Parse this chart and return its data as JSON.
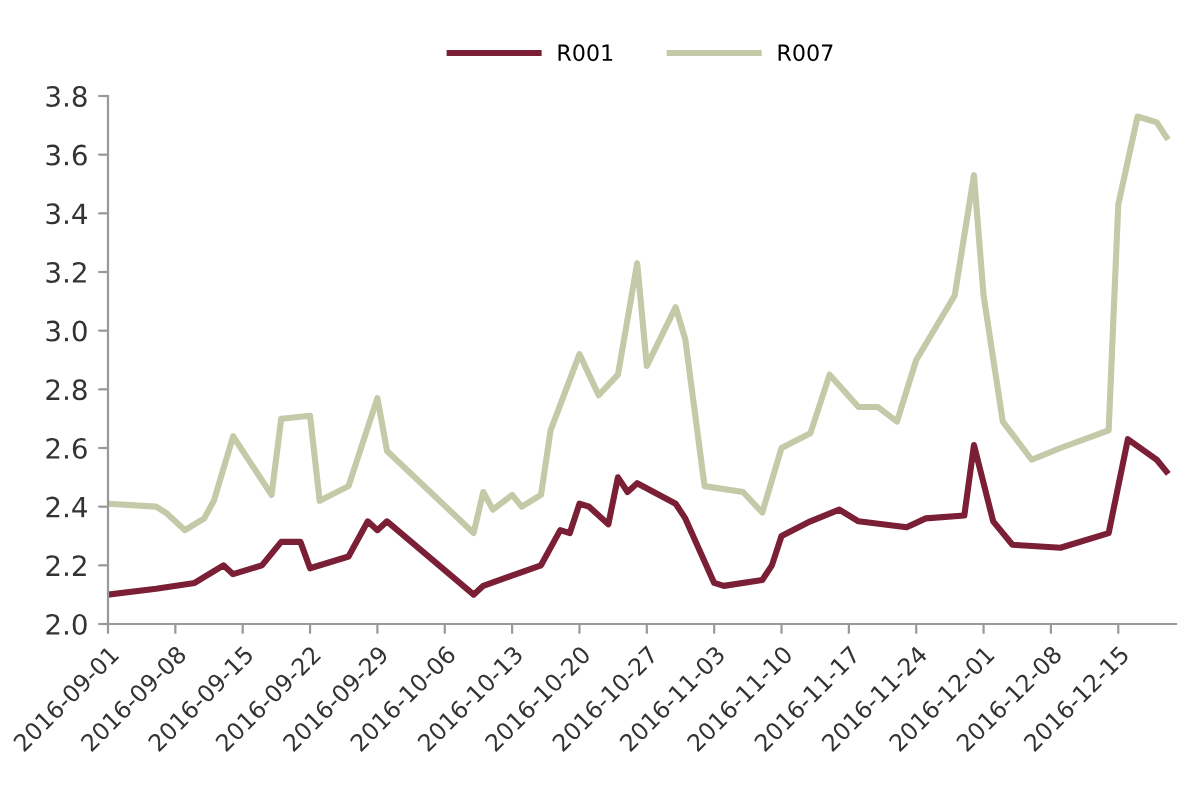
{
  "chart_data": {
    "type": "line",
    "legend": "top",
    "grid": false,
    "marker": "none",
    "line_style": "solid",
    "xlim": [
      "2016-09-01",
      "2016-12-21"
    ],
    "xticks": [
      "2016-09-01",
      "2016-09-08",
      "2016-09-15",
      "2016-09-22",
      "2016-09-29",
      "2016-10-06",
      "2016-10-13",
      "2016-10-20",
      "2016-10-27",
      "2016-11-03",
      "2016-11-10",
      "2016-11-17",
      "2016-11-24",
      "2016-12-01",
      "2016-12-08",
      "2016-12-15"
    ],
    "ylim": [
      2.0,
      3.8
    ],
    "yticks": [
      {
        "value": 2,
        "label": "2.0"
      },
      2.2,
      2.4,
      2.6,
      2.8,
      {
        "value": 3,
        "label": "3.0"
      },
      3.2,
      3.4,
      3.6,
      3.8
    ],
    "series": [
      {
        "name": "R001",
        "color": "#7a1f35",
        "x": [
          "2016-09-01",
          "2016-09-06",
          "2016-09-10",
          "2016-09-13",
          "2016-09-14",
          "2016-09-17",
          "2016-09-19",
          "2016-09-21",
          "2016-09-22",
          "2016-09-26",
          "2016-09-28",
          "2016-09-29",
          "2016-09-30",
          "2016-10-09",
          "2016-10-10",
          "2016-10-16",
          "2016-10-18",
          "2016-10-19",
          "2016-10-20",
          "2016-10-21",
          "2016-10-23",
          "2016-10-24",
          "2016-10-25",
          "2016-10-26",
          "2016-10-30",
          "2016-10-31",
          "2016-11-03",
          "2016-11-04",
          "2016-11-08",
          "2016-11-09",
          "2016-11-10",
          "2016-11-13",
          "2016-11-16",
          "2016-11-18",
          "2016-11-23",
          "2016-11-25",
          "2016-11-29",
          "2016-11-30",
          "2016-12-02",
          "2016-12-04",
          "2016-12-09",
          "2016-12-14",
          "2016-12-16",
          "2016-12-19",
          "2016-12-20"
        ],
        "values": [
          2.1,
          2.12,
          2.14,
          2.2,
          2.17,
          2.2,
          2.28,
          2.28,
          2.19,
          2.23,
          2.35,
          2.32,
          2.35,
          2.1,
          2.13,
          2.2,
          2.32,
          2.31,
          2.41,
          2.4,
          2.34,
          2.5,
          2.45,
          2.48,
          2.41,
          2.36,
          2.14,
          2.13,
          2.15,
          2.2,
          2.3,
          2.35,
          2.39,
          2.35,
          2.33,
          2.36,
          2.37,
          2.61,
          2.35,
          2.27,
          2.26,
          2.31,
          2.63,
          2.56,
          2.52
        ]
      },
      {
        "name": "R007",
        "color": "#c5c9a8",
        "x": [
          "2016-09-01",
          "2016-09-06",
          "2016-09-07",
          "2016-09-09",
          "2016-09-11",
          "2016-09-12",
          "2016-09-14",
          "2016-09-18",
          "2016-09-19",
          "2016-09-22",
          "2016-09-23",
          "2016-09-26",
          "2016-09-29",
          "2016-09-30",
          "2016-10-09",
          "2016-10-10",
          "2016-10-11",
          "2016-10-13",
          "2016-10-14",
          "2016-10-16",
          "2016-10-17",
          "2016-10-20",
          "2016-10-22",
          "2016-10-24",
          "2016-10-26",
          "2016-10-27",
          "2016-10-30",
          "2016-10-31",
          "2016-11-02",
          "2016-11-06",
          "2016-11-08",
          "2016-11-10",
          "2016-11-13",
          "2016-11-15",
          "2016-11-18",
          "2016-11-20",
          "2016-11-22",
          "2016-11-24",
          "2016-11-28",
          "2016-11-30",
          "2016-12-01",
          "2016-12-03",
          "2016-12-06",
          "2016-12-09",
          "2016-12-14",
          "2016-12-15",
          "2016-12-17",
          "2016-12-19",
          "2016-12-20"
        ],
        "values": [
          2.41,
          2.4,
          2.38,
          2.32,
          2.36,
          2.42,
          2.64,
          2.44,
          2.7,
          2.71,
          2.42,
          2.47,
          2.77,
          2.59,
          2.31,
          2.45,
          2.39,
          2.44,
          2.4,
          2.44,
          2.66,
          2.92,
          2.78,
          2.85,
          3.23,
          2.88,
          3.08,
          2.97,
          2.47,
          2.45,
          2.38,
          2.6,
          2.65,
          2.85,
          2.74,
          2.74,
          2.69,
          2.9,
          3.12,
          3.53,
          3.12,
          2.69,
          2.56,
          2.6,
          2.66,
          3.43,
          3.73,
          3.71,
          3.66
        ]
      }
    ]
  }
}
